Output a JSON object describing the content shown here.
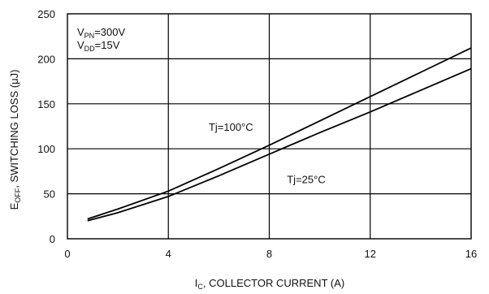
{
  "chart_data": {
    "type": "line",
    "title": "",
    "xlabel": {
      "main": "I",
      "sub": "C",
      "rest": ", COLLECTOR CURRENT (A)"
    },
    "ylabel": {
      "main": "E",
      "sub": "OFF",
      "rest": ", SWITCHING LOSS (μJ)"
    },
    "xlim": [
      0,
      16
    ],
    "ylim": [
      0,
      250
    ],
    "x_ticks": [
      0,
      4,
      8,
      12,
      16
    ],
    "y_ticks": [
      0,
      50,
      100,
      150,
      200,
      250
    ],
    "grid": true,
    "conditions": [
      {
        "main": "V",
        "sub": "PN",
        "rest": "=300V"
      },
      {
        "main": "V",
        "sub": "DD",
        "rest": "=15V"
      }
    ],
    "series": [
      {
        "name": "Tj=100°C",
        "x": [
          0.8,
          2,
          4,
          6,
          8,
          10,
          12,
          14,
          16
        ],
        "y": [
          22,
          33,
          53,
          78,
          104,
          131,
          158,
          185,
          212
        ]
      },
      {
        "name": "Tj=25°C",
        "x": [
          0.8,
          2,
          4,
          6,
          8,
          10,
          12,
          14,
          16
        ],
        "y": [
          20,
          29,
          47,
          70,
          94,
          118,
          141,
          165,
          189
        ]
      }
    ],
    "annotations": [
      {
        "text": "Tj=100°C",
        "at_x": 5.6,
        "at_y": 120
      },
      {
        "text": "Tj=25°C",
        "at_x": 8.7,
        "at_y": 62
      }
    ]
  }
}
